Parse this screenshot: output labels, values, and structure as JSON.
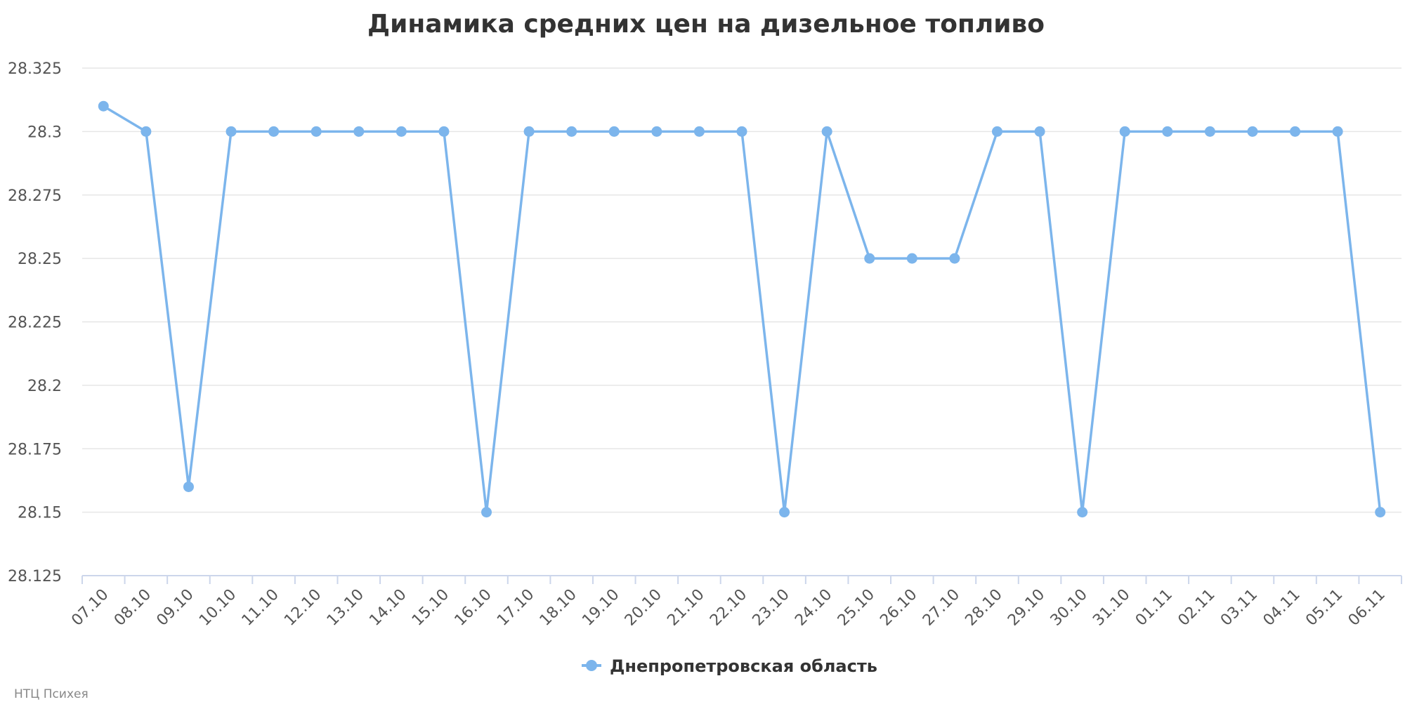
{
  "chart_data": {
    "type": "line",
    "title": "Динамика средних цен на дизельное топливо",
    "xlabel": "",
    "ylabel": "",
    "categories": [
      "07.10",
      "08.10",
      "09.10",
      "10.10",
      "11.10",
      "12.10",
      "13.10",
      "14.10",
      "15.10",
      "16.10",
      "17.10",
      "18.10",
      "19.10",
      "20.10",
      "21.10",
      "22.10",
      "23.10",
      "24.10",
      "25.10",
      "26.10",
      "27.10",
      "28.10",
      "29.10",
      "30.10",
      "31.10",
      "01.11",
      "02.11",
      "03.11",
      "04.11",
      "05.11",
      "06.11"
    ],
    "series": [
      {
        "name": "Днепропетровская область",
        "color": "#7cb5ec",
        "values": [
          28.31,
          28.3,
          28.16,
          28.3,
          28.3,
          28.3,
          28.3,
          28.3,
          28.3,
          28.15,
          28.3,
          28.3,
          28.3,
          28.3,
          28.3,
          28.3,
          28.15,
          28.3,
          28.25,
          28.25,
          28.25,
          28.3,
          28.3,
          28.15,
          28.3,
          28.3,
          28.3,
          28.3,
          28.3,
          28.3,
          28.15
        ]
      }
    ],
    "y_ticks": [
      "28.125",
      "28.15",
      "28.175",
      "28.2",
      "28.225",
      "28.25",
      "28.275",
      "28.3",
      "28.325"
    ],
    "ylim": [
      28.125,
      28.325
    ],
    "grid": true,
    "legend_position": "bottom-center",
    "grid_color": "#e6e6e6",
    "axis_color": "#ccd6eb"
  },
  "credits": "НТЦ Психея"
}
